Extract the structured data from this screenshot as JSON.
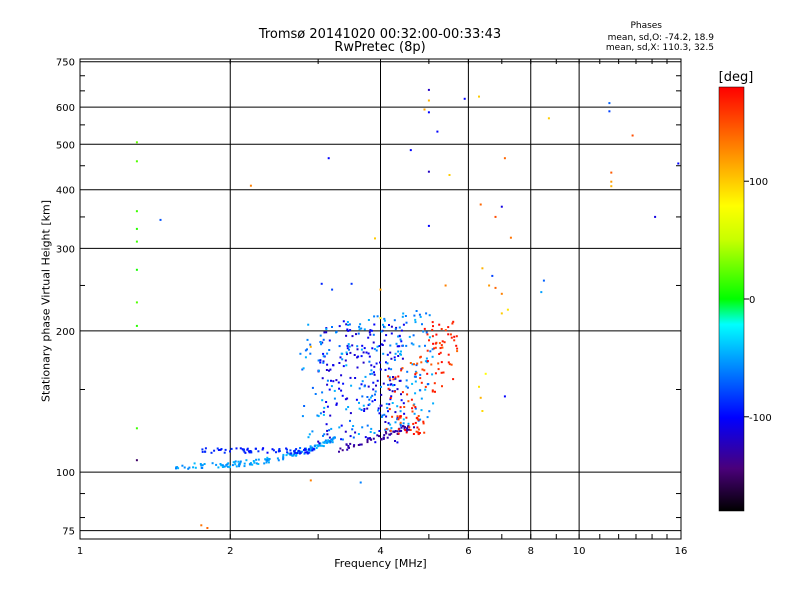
{
  "chart_data": {
    "type": "scatter",
    "title": "Tromsø 20141020 00:32:00-00:33:43",
    "subtitle": "RwPretec (8p)",
    "xlabel": "Frequency [MHz]",
    "ylabel": "Stationary phase Virtual Height [km]",
    "x_scale": "log",
    "y_scale": "log",
    "xlim": [
      1,
      16
    ],
    "ylim": [
      72,
      760
    ],
    "grid": true,
    "x_ticks": [
      "1",
      "2",
      "4",
      "6",
      "8",
      "10",
      "16"
    ],
    "x_tick_values": [
      1,
      2,
      4,
      6,
      8,
      10,
      16
    ],
    "y_ticks": [
      "75",
      "100",
      "200",
      "300",
      "400",
      "500",
      "600",
      "750"
    ],
    "y_tick_values": [
      75,
      100,
      200,
      300,
      400,
      500,
      600,
      750
    ],
    "phases_legend": {
      "title": "Phases",
      "o_mode": "mean, sd,O: -74.2, 18.9",
      "x_mode": "mean, sd,X: 110.3, 32.5"
    },
    "colorbar": {
      "label": "[deg]",
      "range": [
        -180,
        180
      ],
      "ticks": [
        "100",
        "0",
        "-100"
      ],
      "tick_values": [
        100,
        0,
        -100
      ]
    },
    "series": [
      {
        "points": [
          [
            1.3,
            505,
            25
          ],
          [
            1.3,
            460,
            20
          ],
          [
            1.3,
            360,
            15
          ],
          [
            1.3,
            330,
            10
          ],
          [
            1.3,
            310,
            15
          ],
          [
            1.3,
            270,
            5
          ],
          [
            1.3,
            230,
            20
          ],
          [
            1.3,
            205,
            10
          ],
          [
            1.3,
            124,
            15
          ],
          [
            1.3,
            106,
            -150
          ],
          [
            1.45,
            345,
            -75
          ],
          [
            1.75,
            77,
            135
          ],
          [
            1.8,
            76,
            140
          ],
          [
            2.2,
            408,
            130
          ],
          [
            2.9,
            185,
            110
          ],
          [
            2.9,
            96,
            130
          ],
          [
            3.05,
            252,
            -90
          ],
          [
            3.15,
            467,
            -100
          ],
          [
            3.2,
            245,
            -80
          ],
          [
            3.5,
            252,
            -85
          ],
          [
            3.65,
            95,
            -60
          ],
          [
            3.9,
            315,
            100
          ],
          [
            4.0,
            245,
            115
          ],
          [
            4.0,
            213,
            90
          ],
          [
            4.6,
            486,
            -100
          ],
          [
            5.0,
            653,
            -120
          ],
          [
            5.0,
            620,
            110
          ],
          [
            5.0,
            585,
            -100
          ],
          [
            5.2,
            532,
            -100
          ],
          [
            5.0,
            437,
            -120
          ],
          [
            5.5,
            430,
            100
          ],
          [
            5.0,
            335,
            -100
          ],
          [
            5.4,
            250,
            130
          ],
          [
            5.9,
            625,
            -100
          ],
          [
            4.9,
            593,
            115
          ],
          [
            6.3,
            632,
            100
          ],
          [
            7.1,
            467,
            140
          ],
          [
            7.0,
            368,
            -110
          ],
          [
            6.35,
            372,
            140
          ],
          [
            6.8,
            350,
            150
          ],
          [
            7.3,
            316,
            135
          ],
          [
            6.4,
            272,
            110
          ],
          [
            6.7,
            262,
            -80
          ],
          [
            6.6,
            250,
            120
          ],
          [
            7.0,
            240,
            130
          ],
          [
            6.8,
            247,
            140
          ],
          [
            7.2,
            222,
            90
          ],
          [
            7.0,
            218,
            100
          ],
          [
            8.5,
            256,
            -70
          ],
          [
            8.4,
            242,
            -50
          ],
          [
            8.7,
            568,
            100
          ],
          [
            6.5,
            162,
            80
          ],
          [
            6.3,
            152,
            90
          ],
          [
            7.1,
            145,
            -100
          ],
          [
            6.35,
            144,
            110
          ],
          [
            6.4,
            135,
            95
          ],
          [
            11.5,
            612,
            -70
          ],
          [
            11.5,
            588,
            -80
          ],
          [
            12.8,
            522,
            150
          ],
          [
            11.6,
            435,
            145
          ],
          [
            11.6,
            416,
            120
          ],
          [
            11.6,
            407,
            110
          ],
          [
            15.8,
            455,
            -100
          ],
          [
            14.2,
            350,
            -110
          ]
        ]
      }
    ]
  }
}
